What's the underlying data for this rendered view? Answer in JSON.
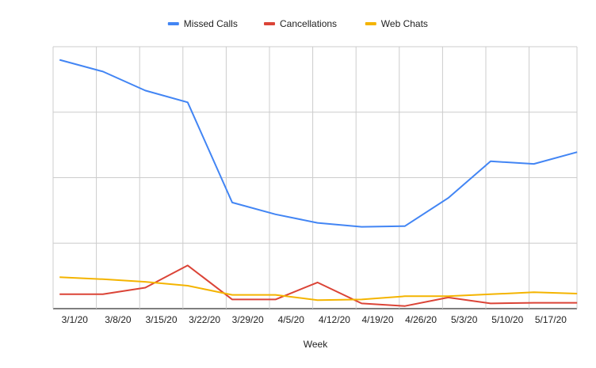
{
  "chart_data": {
    "type": "line",
    "title": "",
    "xlabel": "Week",
    "ylabel": "",
    "x": [
      "",
      "3/1/20",
      "3/8/20",
      "3/15/20",
      "3/22/20",
      "3/29/20",
      "4/5/20",
      "4/12/20",
      "4/19/20",
      "4/26/20",
      "5/3/20",
      "5/10/20",
      "5/17/20"
    ],
    "ylim": [
      0,
      400
    ],
    "y_gridlines": [
      0,
      100,
      200,
      300,
      400
    ],
    "y_tick_labels_visible": false,
    "grid": true,
    "legend_position": "top",
    "series": [
      {
        "name": "Missed Calls",
        "color": "#4285f4",
        "points": [
          {
            "x": 2.15,
            "y": 380
          },
          {
            "x": 3.15,
            "y": 362
          },
          {
            "x": 4.13,
            "y": 333
          },
          {
            "x": 5.11,
            "y": 315
          },
          {
            "x": 6.14,
            "y": 162
          },
          {
            "x": 7.14,
            "y": 144
          },
          {
            "x": 8.11,
            "y": 131
          },
          {
            "x": 9.13,
            "y": 125
          },
          {
            "x": 10.13,
            "y": 126
          },
          {
            "x": 11.13,
            "y": 169
          },
          {
            "x": 12.11,
            "y": 225
          },
          {
            "x": 13.11,
            "y": 221
          },
          {
            "x": 14.11,
            "y": 239
          }
        ]
      },
      {
        "name": "Cancellations",
        "color": "#db4437",
        "points": [
          {
            "x": 2.15,
            "y": 22
          },
          {
            "x": 3.15,
            "y": 22
          },
          {
            "x": 4.13,
            "y": 32
          },
          {
            "x": 5.11,
            "y": 66
          },
          {
            "x": 6.14,
            "y": 14
          },
          {
            "x": 7.14,
            "y": 14
          },
          {
            "x": 8.11,
            "y": 40
          },
          {
            "x": 9.13,
            "y": 8
          },
          {
            "x": 10.13,
            "y": 4
          },
          {
            "x": 11.13,
            "y": 17
          },
          {
            "x": 12.11,
            "y": 8
          },
          {
            "x": 13.11,
            "y": 9
          },
          {
            "x": 14.11,
            "y": 9
          }
        ]
      },
      {
        "name": "Web Chats",
        "color": "#f4b400",
        "points": [
          {
            "x": 2.15,
            "y": 48
          },
          {
            "x": 3.15,
            "y": 45
          },
          {
            "x": 4.13,
            "y": 41
          },
          {
            "x": 5.11,
            "y": 35
          },
          {
            "x": 6.14,
            "y": 21
          },
          {
            "x": 7.14,
            "y": 21
          },
          {
            "x": 8.11,
            "y": 13
          },
          {
            "x": 9.13,
            "y": 14
          },
          {
            "x": 10.13,
            "y": 19
          },
          {
            "x": 11.13,
            "y": 19
          },
          {
            "x": 12.11,
            "y": 22
          },
          {
            "x": 13.11,
            "y": 25
          },
          {
            "x": 14.11,
            "y": 23
          }
        ]
      }
    ]
  }
}
